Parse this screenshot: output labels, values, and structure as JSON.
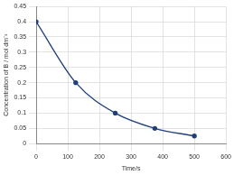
{
  "chart_data": {
    "type": "line",
    "x_label": "Time/s",
    "y_label": "Concentration of B / mol dm⁻³",
    "series": [
      {
        "name": "B",
        "color": "#1f3f7a",
        "marker": "circle",
        "x": [
          0,
          125,
          250,
          375,
          500
        ],
        "values": [
          0.4,
          0.2,
          0.1,
          0.05,
          0.025
        ]
      }
    ],
    "xlim": [
      0,
      600
    ],
    "xticks": [
      0,
      100,
      200,
      300,
      400,
      500,
      600
    ],
    "ylim": [
      0,
      0.45
    ],
    "yticks": [
      0,
      0.05,
      0.1,
      0.15,
      0.2,
      0.25,
      0.3,
      0.35,
      0.4,
      0.45
    ],
    "grid": true
  }
}
